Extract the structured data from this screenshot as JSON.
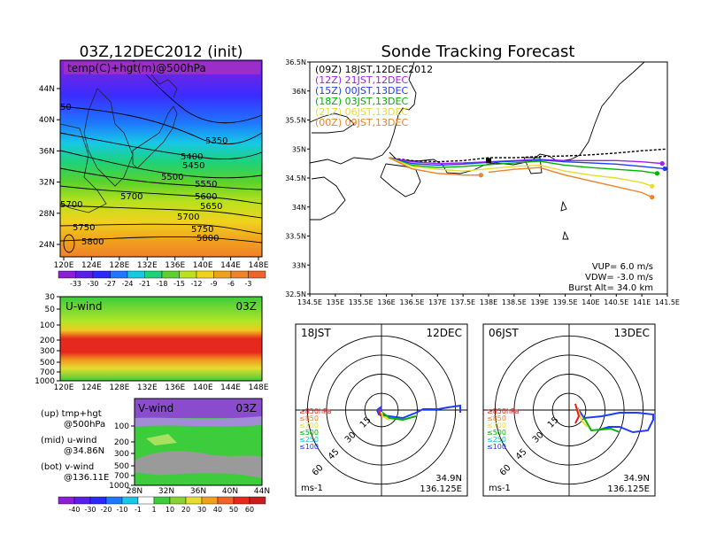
{
  "left_title": "03Z,12DEC2012 (init)",
  "right_title": "Sonde Tracking Forecast",
  "map_left": {
    "label": "temp(C)+hgt(m)@500hPa",
    "x_ticks": [
      "120E",
      "124E",
      "128E",
      "132E",
      "136E",
      "140E",
      "144E",
      "148E"
    ],
    "y_ticks": [
      "24N",
      "28N",
      "32N",
      "36N",
      "40N",
      "44N"
    ],
    "contour_labels": [
      "5350",
      "5400",
      "5450",
      "5500",
      "5550",
      "5600",
      "5650",
      "5700",
      "5700",
      "5750",
      "5750",
      "5800",
      "5800",
      "5700",
      "50"
    ],
    "colorbar_ticks": [
      "-33",
      "-30",
      "-27",
      "-24",
      "-21",
      "-18",
      "-15",
      "-12",
      "-9",
      "-6",
      "-3"
    ]
  },
  "uwind": {
    "label": "U-wind",
    "time": "03Z",
    "y_ticks": [
      "30",
      "50",
      "100",
      "200",
      "300",
      "500",
      "700",
      "1000"
    ],
    "x_ticks": [
      "120E",
      "124E",
      "128E",
      "132E",
      "136E",
      "140E",
      "144E",
      "148E"
    ]
  },
  "vwind": {
    "label": "V-wind",
    "time": "03Z",
    "y_ticks": [
      "100",
      "200",
      "300",
      "500",
      "700",
      "1000"
    ],
    "x_ticks": [
      "28N",
      "32N",
      "36N",
      "40N",
      "44N"
    ],
    "colorbar_ticks": [
      "-40",
      "-30",
      "-20",
      "-10",
      "-1",
      "1",
      "10",
      "20",
      "30",
      "40",
      "50",
      "60"
    ]
  },
  "legend_left": [
    {
      "head": "(up) tmp+hgt",
      "sub": "@500hPa"
    },
    {
      "head": "(mid) u-wind",
      "sub": "@34.86N"
    },
    {
      "head": "(bot) v-wind",
      "sub": "@136.11E"
    }
  ],
  "track_map": {
    "x_ticks": [
      "134.5E",
      "135E",
      "135.5E",
      "136E",
      "136.5E",
      "137E",
      "137.5E",
      "138E",
      "138.5E",
      "139E",
      "139.5E",
      "140E",
      "140.5E",
      "141E",
      "141.5E"
    ],
    "y_ticks": [
      "36.5N",
      "36N",
      "35.5N",
      "35N",
      "34.5N",
      "34N",
      "33.5N",
      "33N",
      "32.5N"
    ],
    "legend": [
      {
        "text": "(09Z)  18JST,12DEC2012",
        "color": "#000000"
      },
      {
        "text": "(12Z)  21JST,12DEC",
        "color": "#a020f0"
      },
      {
        "text": "(15Z)  00JST,13DEC",
        "color": "#1e3cff"
      },
      {
        "text": "(18Z)  03JST,13DEC",
        "color": "#00b400"
      },
      {
        "text": "(21Z)  06JST,13DEC",
        "color": "#e6dc32"
      },
      {
        "text": "(00Z)  09JST,13DEC",
        "color": "#f08228"
      }
    ],
    "params": [
      "VUP=  6.0  m/s",
      "VDW= -3.0  m/s",
      "Burst Alt=  34.0  km"
    ]
  },
  "hodo_left": {
    "tl": "18JST",
    "tr": "12DEC",
    "unit": "ms-1",
    "lat": "34.9N",
    "lon": "136.125E",
    "ring_labels": [
      "15",
      "30",
      "45",
      "60"
    ],
    "levels": [
      {
        "text": "≥850hPa",
        "color": "#e61e1e"
      },
      {
        "text": "≤850",
        "color": "#f08228"
      },
      {
        "text": "≤700",
        "color": "#e6dc32"
      },
      {
        "text": "≤500",
        "color": "#00b400"
      },
      {
        "text": "≤250",
        "color": "#00c8c8"
      },
      {
        "text": "≤100",
        "color": "#1e3cff"
      }
    ]
  },
  "hodo_right": {
    "tl": "06JST",
    "tr": "13DEC",
    "unit": "ms-1",
    "lat": "34.9N",
    "lon": "136.125E",
    "ring_labels": [
      "15",
      "30",
      "45",
      "60"
    ],
    "levels": [
      {
        "text": "≥850hPa",
        "color": "#e61e1e"
      },
      {
        "text": "≤850",
        "color": "#f08228"
      },
      {
        "text": "≤700",
        "color": "#e6dc32"
      },
      {
        "text": "≤500",
        "color": "#00b400"
      },
      {
        "text": "≤250",
        "color": "#00c8c8"
      },
      {
        "text": "≤100",
        "color": "#1e3cff"
      }
    ]
  },
  "chart_data": {
    "type": "line",
    "title": "Sonde Tracking Forecast",
    "xlim": [
      134.5,
      141.5
    ],
    "ylim": [
      32.5,
      36.5
    ],
    "series": [
      {
        "name": "(09Z)  18JST,12DEC2012",
        "x": [
          136.05,
          136.5,
          137.0,
          137.5,
          138.0,
          138.5,
          139.0,
          139.5,
          140.0,
          140.5,
          141.0,
          141.5
        ],
        "y": [
          34.85,
          34.8,
          34.78,
          34.8,
          34.85,
          34.85,
          34.87,
          34.88,
          34.9,
          34.93,
          34.97,
          35.0
        ]
      },
      {
        "name": "(12Z)  21JST,12DEC",
        "x": [
          136.05,
          136.5,
          137.0,
          137.5,
          138.0,
          138.5,
          139.0,
          139.5,
          140.0,
          140.5,
          141.0,
          141.4
        ],
        "y": [
          34.85,
          34.78,
          34.75,
          34.76,
          34.78,
          34.8,
          34.82,
          34.8,
          34.8,
          34.8,
          34.78,
          34.75
        ]
      },
      {
        "name": "(15Z)  00JST,13DEC",
        "x": [
          136.05,
          136.5,
          137.0,
          137.5,
          138.0,
          138.5,
          139.0,
          139.5,
          140.0,
          140.5,
          141.0,
          141.45
        ],
        "y": [
          34.85,
          34.75,
          34.72,
          34.74,
          34.77,
          34.79,
          34.81,
          34.78,
          34.76,
          34.74,
          34.7,
          34.66
        ]
      },
      {
        "name": "(18Z)  03JST,13DEC",
        "x": [
          136.05,
          136.5,
          137.0,
          137.5,
          138.0,
          138.5,
          139.0,
          139.5,
          140.0,
          140.5,
          141.0,
          141.3
        ],
        "y": [
          34.85,
          34.72,
          34.68,
          34.7,
          34.73,
          34.76,
          34.79,
          34.72,
          34.68,
          34.65,
          34.62,
          34.58
        ]
      },
      {
        "name": "(21Z)  06JST,13DEC",
        "x": [
          136.05,
          136.5,
          137.0,
          137.5,
          138.0,
          138.5,
          139.0,
          139.5,
          140.0,
          140.5,
          141.0,
          141.2
        ],
        "y": [
          34.85,
          34.7,
          34.65,
          34.62,
          34.66,
          34.7,
          34.72,
          34.62,
          34.55,
          34.5,
          34.42,
          34.36
        ]
      },
      {
        "name": "(00Z)  09JST,13DEC",
        "x": [
          136.05,
          136.5,
          137.0,
          137.5,
          137.85
        ],
        "y": [
          34.85,
          34.66,
          34.58,
          34.55,
          34.55
        ]
      },
      {
        "name": "(00Z)  09JST,13DEC (cont.)",
        "x": [
          138.0,
          138.5,
          139.0,
          139.5,
          140.0,
          140.5,
          141.0,
          141.2
        ],
        "y": [
          34.6,
          34.65,
          34.68,
          34.55,
          34.45,
          34.35,
          34.25,
          34.17
        ]
      }
    ]
  }
}
